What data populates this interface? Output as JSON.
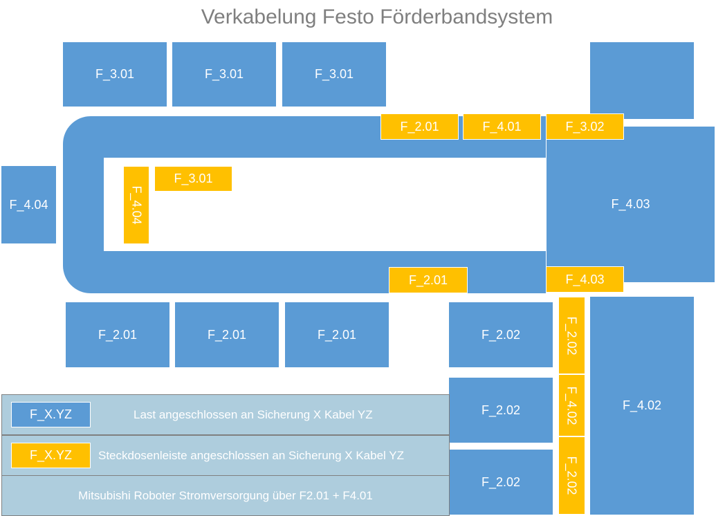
{
  "title": "Verkabelung Festo Förderbandsystem",
  "colors": {
    "load": "#5B9BD5",
    "power_strip": "#FFC000",
    "legend_bg": "#AECDDD"
  },
  "blocks": {
    "top_1": "F_3.01",
    "top_2": "F_3.01",
    "top_3": "F_3.01",
    "left": "F_4.04",
    "right": "F_4.03",
    "bottom_1": "F_2.01",
    "bottom_2": "F_2.01",
    "bottom_3": "F_2.01",
    "f202_1": "F_2.02",
    "f202_2": "F_2.02",
    "f202_3": "F_2.02",
    "far_right": "F_4.02"
  },
  "strips": {
    "top_1": "F_2.01",
    "top_2": "F_4.01",
    "top_3": "F_3.02",
    "inner_vertical": "F_4.04",
    "inner": "F_3.01",
    "bottom_conveyor": "F_2.01",
    "bottom_right": "F_4.03",
    "vert_1": "F_2.02",
    "vert_2": "F_4.02",
    "vert_3": "F_2.02"
  },
  "legend": {
    "load_chip": "F_X.YZ",
    "load_text": "Last angeschlossen an Sicherung X Kabel YZ",
    "strip_chip": "F_X.YZ",
    "strip_text": "Steckdosenleiste angeschlossen an Sicherung X Kabel YZ",
    "note": "Mitsubishi Roboter Stromversorgung über  F2.01 + F4.01"
  }
}
